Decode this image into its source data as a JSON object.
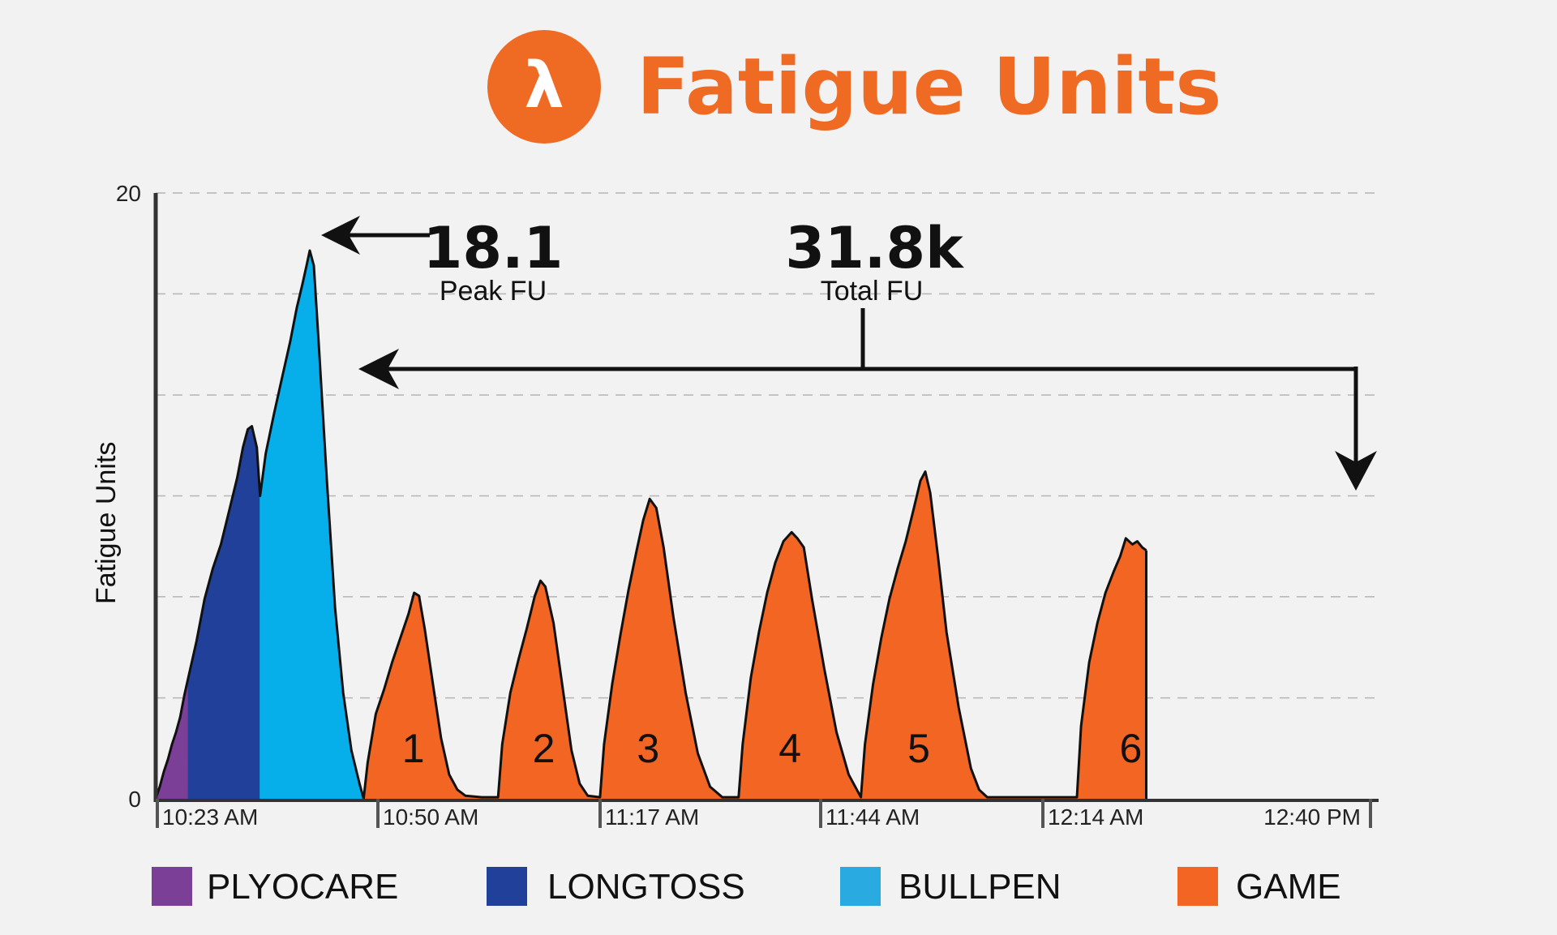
{
  "header": {
    "logo_glyph": "λ",
    "logo_color": "#ef6a23",
    "title": "Fatigue Units"
  },
  "annotations": {
    "peak_value": "18.1",
    "peak_label": "Peak FU",
    "total_value": "31.8k",
    "total_label": "Total FU"
  },
  "chart_data": {
    "type": "area",
    "title": "",
    "xlabel": "",
    "ylabel": "Fatigue Units",
    "ylim": [
      0,
      20
    ],
    "y_ticks_labeled": [
      "0",
      "20"
    ],
    "y_gridlines": [
      3.33,
      6.67,
      10,
      13.33,
      16.67,
      20
    ],
    "x_tick_labels": [
      "10:23 AM",
      "10:50 AM",
      "11:17 AM",
      "11:44 AM",
      "12:14 AM",
      "12:40 PM"
    ],
    "x_range_minutes": [
      0,
      150
    ],
    "grid": true,
    "legend_position": "bottom",
    "series": [
      {
        "name": "PLYOCARE",
        "color": "#7b3f98",
        "segments": [
          [
            [
              0,
              0
            ],
            [
              0.5,
              0.4
            ],
            [
              1,
              0.9
            ],
            [
              1.5,
              1.3
            ],
            [
              2,
              1.8
            ],
            [
              2.5,
              2.2
            ],
            [
              3,
              2.7
            ],
            [
              3.5,
              3.4
            ],
            [
              4,
              4.0
            ]
          ]
        ]
      },
      {
        "name": "LONGTOSS",
        "color": "#21409a",
        "segments": [
          [
            [
              4,
              4.0
            ],
            [
              5,
              5.2
            ],
            [
              6,
              6.6
            ],
            [
              7,
              7.6
            ],
            [
              8,
              8.4
            ],
            [
              9,
              9.5
            ],
            [
              10,
              10.6
            ],
            [
              10.7,
              11.6
            ],
            [
              11.3,
              12.2
            ],
            [
              11.8,
              12.3
            ],
            [
              12.4,
              11.6
            ],
            [
              12.8,
              10.0
            ]
          ]
        ]
      },
      {
        "name": "BULLPEN",
        "color": "#06aeea",
        "segments": [
          [
            [
              12.8,
              10.0
            ],
            [
              13.5,
              11.4
            ],
            [
              14.5,
              12.7
            ],
            [
              15.5,
              13.9
            ],
            [
              16.5,
              15.1
            ],
            [
              17.3,
              16.2
            ],
            [
              18,
              17.0
            ],
            [
              18.5,
              17.6
            ],
            [
              18.9,
              18.1
            ],
            [
              19.4,
              17.6
            ],
            [
              20,
              15.0
            ],
            [
              21,
              10.5
            ],
            [
              22,
              6.3
            ],
            [
              23,
              3.5
            ],
            [
              24,
              1.6
            ],
            [
              25,
              0.5
            ],
            [
              25.5,
              0
            ]
          ]
        ]
      },
      {
        "name": "GAME",
        "color": "#f26522",
        "segments": [
          [
            [
              25.5,
              0
            ],
            [
              26,
              1.2
            ],
            [
              27,
              2.8
            ],
            [
              28,
              3.6
            ],
            [
              29,
              4.5
            ],
            [
              30,
              5.3
            ],
            [
              31,
              6.1
            ],
            [
              31.7,
              6.8
            ],
            [
              32.3,
              6.7
            ],
            [
              33,
              5.6
            ],
            [
              34,
              3.8
            ],
            [
              35,
              2.0
            ],
            [
              36,
              0.8
            ],
            [
              37,
              0.3
            ],
            [
              38,
              0.1
            ],
            [
              40,
              0.05
            ],
            [
              42,
              0.05
            ]
          ],
          [
            [
              42,
              0.05
            ],
            [
              42.5,
              1.8
            ],
            [
              43.5,
              3.5
            ],
            [
              44.5,
              4.6
            ],
            [
              45.5,
              5.6
            ],
            [
              46.5,
              6.7
            ],
            [
              47.2,
              7.2
            ],
            [
              47.8,
              7.0
            ],
            [
              48.8,
              5.8
            ],
            [
              50,
              3.5
            ],
            [
              51,
              1.6
            ],
            [
              52,
              0.5
            ],
            [
              53,
              0.1
            ],
            [
              54.5,
              0.05
            ]
          ],
          [
            [
              54.5,
              0.05
            ],
            [
              55,
              1.8
            ],
            [
              56,
              3.8
            ],
            [
              57,
              5.4
            ],
            [
              58,
              6.9
            ],
            [
              59,
              8.2
            ],
            [
              59.8,
              9.2
            ],
            [
              60.6,
              9.9
            ],
            [
              61.4,
              9.6
            ],
            [
              62.3,
              8.3
            ],
            [
              63.5,
              6.0
            ],
            [
              65,
              3.5
            ],
            [
              66.5,
              1.5
            ],
            [
              68,
              0.4
            ],
            [
              69.5,
              0.05
            ],
            [
              71.5,
              0.05
            ]
          ],
          [
            [
              71.5,
              0.05
            ],
            [
              72,
              1.8
            ],
            [
              73,
              4.0
            ],
            [
              74,
              5.5
            ],
            [
              75,
              6.8
            ],
            [
              76,
              7.8
            ],
            [
              77,
              8.5
            ],
            [
              78,
              8.8
            ],
            [
              78.7,
              8.6
            ],
            [
              79.5,
              8.3
            ],
            [
              80.5,
              6.6
            ],
            [
              82,
              4.3
            ],
            [
              83.5,
              2.2
            ],
            [
              85,
              0.8
            ],
            [
              86.5,
              0.05
            ]
          ],
          [
            [
              86.5,
              0.05
            ],
            [
              87,
              1.8
            ],
            [
              88,
              3.8
            ],
            [
              89,
              5.3
            ],
            [
              90,
              6.6
            ],
            [
              91,
              7.6
            ],
            [
              92,
              8.5
            ],
            [
              93,
              9.6
            ],
            [
              93.8,
              10.5
            ],
            [
              94.4,
              10.8
            ],
            [
              95,
              10.1
            ],
            [
              96,
              7.9
            ],
            [
              97,
              5.5
            ],
            [
              98.5,
              3.0
            ],
            [
              100,
              1.0
            ],
            [
              101,
              0.3
            ],
            [
              102,
              0.05
            ],
            [
              113,
              0.05
            ]
          ],
          [
            [
              113,
              0.05
            ],
            [
              113.5,
              2.4
            ],
            [
              114.5,
              4.5
            ],
            [
              115.5,
              5.8
            ],
            [
              116.5,
              6.8
            ],
            [
              117.5,
              7.5
            ],
            [
              118.3,
              8.0
            ],
            [
              119,
              8.6
            ],
            [
              119.8,
              8.4
            ],
            [
              120.4,
              8.5
            ],
            [
              121,
              8.3
            ],
            [
              121.5,
              8.2
            ]
          ]
        ]
      }
    ],
    "game_labels": [
      "1",
      "2",
      "3",
      "4",
      "5",
      "6"
    ]
  },
  "legend": [
    {
      "label": "PLYOCARE",
      "color": "#7b3f98"
    },
    {
      "label": "LONGTOSS",
      "color": "#21409a"
    },
    {
      "label": "BULLPEN",
      "color": "#29abe2"
    },
    {
      "label": "GAME",
      "color": "#f26522"
    }
  ]
}
